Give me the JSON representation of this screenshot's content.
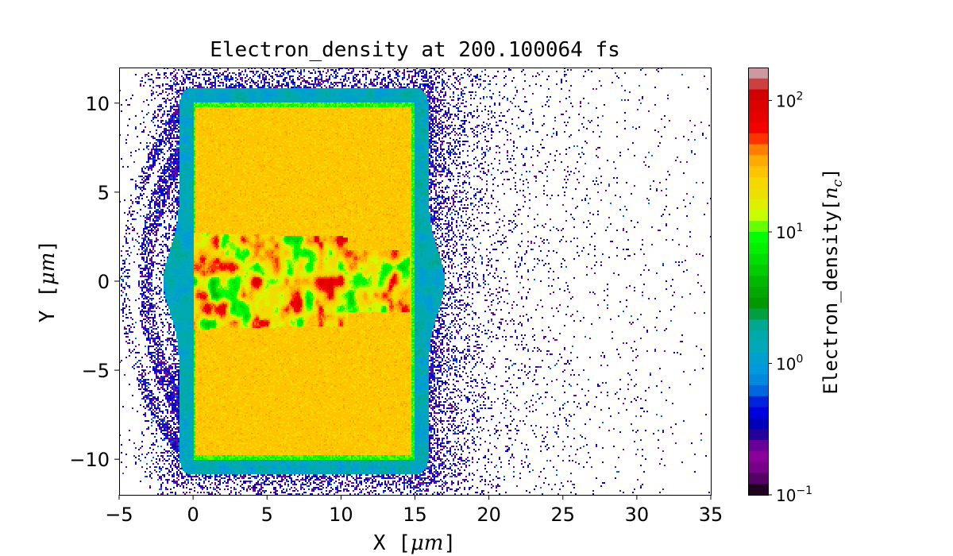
{
  "chart_data": {
    "type": "heatmap",
    "title": "Electron_density at 200.100064 fs",
    "xlabel": "X [μm]",
    "xlabel_prefix": "X [",
    "ylabel_prefix": "Y [",
    "unit": "μm",
    "unit_suffix": "]",
    "ylabel": "Y [μm]",
    "xlim": [
      -5,
      35
    ],
    "ylim": [
      -12,
      12
    ],
    "xticks": [
      -5,
      0,
      5,
      10,
      15,
      20,
      25,
      30,
      35
    ],
    "xtick_labels": [
      "−5",
      "0",
      "5",
      "10",
      "15",
      "20",
      "25",
      "30",
      "35"
    ],
    "yticks": [
      -10,
      -5,
      0,
      5,
      10
    ],
    "ytick_labels": [
      "−10",
      "−5",
      "0",
      "5",
      "10"
    ],
    "grid": false,
    "colorbar": {
      "label": "Electron_density[n_c]",
      "label_prefix": "Electron_density[",
      "label_var": "n",
      "label_sub": "c",
      "label_suffix": "]",
      "scale": "log",
      "range": [
        0.1,
        178
      ],
      "ticks": [
        0.1,
        1,
        10,
        100
      ],
      "tick_labels": [
        {
          "base": "10",
          "exp": "−1"
        },
        {
          "base": "10",
          "exp": "0"
        },
        {
          "base": "10",
          "exp": "1"
        },
        {
          "base": "10",
          "exp": "2"
        }
      ],
      "colors_top_to_bottom": [
        "#cc99a0",
        "#cc4040",
        "#d00000",
        "#dd0000",
        "#e60000",
        "#f50000",
        "#ff3300",
        "#ff8000",
        "#ffaa00",
        "#ffc400",
        "#f5d800",
        "#ebe000",
        "#e0ef00",
        "#c8ff00",
        "#66ff00",
        "#00ff00",
        "#00f000",
        "#00dd00",
        "#00cc00",
        "#00b800",
        "#00a800",
        "#009900",
        "#00a040",
        "#00a890",
        "#00aaaa",
        "#00a8b8",
        "#00a0cc",
        "#0099dd",
        "#0088dd",
        "#0066dd",
        "#0022dd",
        "#0000dd",
        "#0000bb",
        "#220099",
        "#660099",
        "#880099",
        "#770088",
        "#550066",
        "#220022"
      ]
    },
    "regions": [
      {
        "x": [
          0,
          15
        ],
        "y": [
          -10,
          10
        ],
        "density": 28
      },
      {
        "x": [
          0,
          15
        ],
        "y": [
          -2.6,
          2.6
        ],
        "density_range": [
          5,
          100
        ]
      },
      {
        "density_range": [
          0.8,
          2
        ]
      },
      {
        "x": [
          -5,
          35
        ],
        "density_range": [
          0.2,
          0.6
        ]
      }
    ]
  }
}
